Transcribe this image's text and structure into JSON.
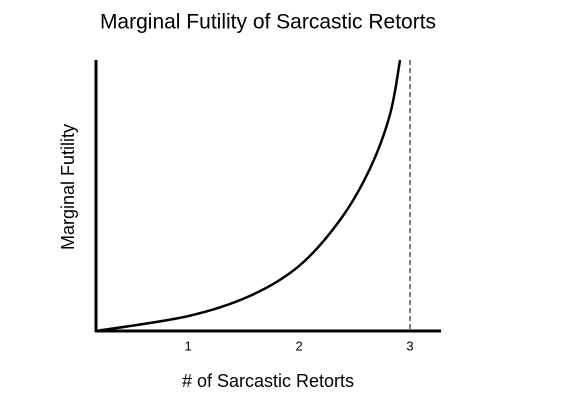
{
  "chart_data": {
    "type": "line",
    "title": "Marginal Futility of Sarcastic Retorts",
    "x_label": "# of Sarcastic Retorts",
    "y_label": "Marginal Futility",
    "x": [
      0.17,
      1,
      1.56,
      2,
      2.37,
      2.64,
      2.82,
      2.91
    ],
    "series": [
      {
        "color": "#000000",
        "values": [
          0,
          0.55,
          1.3,
          2.4,
          4.1,
          6.0,
          8.0,
          10
        ]
      }
    ],
    "asymptote": 3,
    "xlim": [
      0.17,
      3.27
    ],
    "xticks": [
      1,
      2,
      3
    ],
    "ylim": [
      0,
      10
    ]
  }
}
